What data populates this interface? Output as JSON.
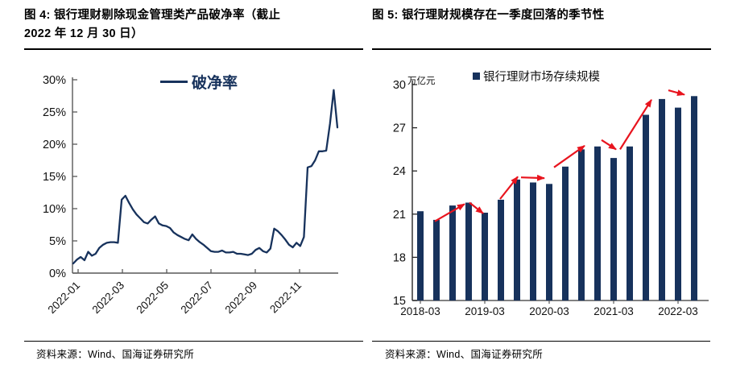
{
  "figure4": {
    "title_lines": [
      "图 4: 银行理财剔除现金管理类产品破净率（截止",
      "2022 年 12 月 30 日）"
    ],
    "legend": "破净率",
    "source": "资料来源：Wind、国海证券研究所"
  },
  "figure5": {
    "title": "图 5: 银行理财规模存在一季度回落的季节性",
    "unit_label": "万亿元",
    "legend": "银行理财市场存续规模",
    "source": "资料来源：Wind、国海证券研究所"
  },
  "colors": {
    "navy": "#17325c",
    "red": "#e8141e",
    "axis": "#595959",
    "label": "#111111"
  },
  "chart_data": [
    {
      "type": "line",
      "title": "银行理财剔除现金管理类产品破净率",
      "series_name": "破净率",
      "unit": "%",
      "frequency": "weekly",
      "x_start": "2022-01",
      "x_end": "2022-12-30",
      "x_ticks": [
        "2022-01",
        "2022-03",
        "2022-05",
        "2022-07",
        "2022-09",
        "2022-11"
      ],
      "y_ticks": [
        "0%",
        "5%",
        "10%",
        "15%",
        "20%",
        "25%",
        "30%"
      ],
      "ylim": [
        0,
        30
      ],
      "grid": false,
      "legend_position": "top-center",
      "values": [
        1.5,
        2.1,
        2.5,
        2.0,
        3.3,
        2.7,
        3.0,
        3.9,
        4.4,
        4.7,
        4.8,
        4.8,
        4.7,
        11.4,
        12.0,
        10.9,
        9.9,
        9.1,
        8.5,
        7.9,
        7.7,
        8.3,
        8.8,
        7.7,
        7.4,
        7.3,
        7.0,
        6.3,
        5.9,
        5.6,
        5.3,
        5.1,
        6.0,
        5.3,
        4.8,
        4.4,
        3.9,
        3.4,
        3.3,
        3.3,
        3.5,
        3.2,
        3.2,
        3.3,
        3.0,
        3.0,
        2.9,
        2.8,
        3.0,
        3.6,
        3.9,
        3.4,
        3.2,
        3.8,
        6.9,
        6.5,
        5.9,
        5.2,
        4.4,
        4.0,
        4.7,
        4.2,
        5.6,
        16.4,
        16.6,
        17.5,
        18.9,
        18.9,
        19.0,
        23.2,
        28.4,
        22.6
      ]
    },
    {
      "type": "bar",
      "title": "银行理财市场存续规模",
      "series_name": "银行理财市场存续规模",
      "unit": "万亿元",
      "categories": [
        "2018-03",
        "2018-06",
        "2018-09",
        "2018-12",
        "2019-03",
        "2019-06",
        "2019-09",
        "2019-12",
        "2020-03",
        "2020-06",
        "2020-09",
        "2020-12",
        "2021-03",
        "2021-06",
        "2021-09",
        "2021-12",
        "2022-03",
        "2022-06"
      ],
      "values": [
        21.2,
        20.6,
        21.6,
        21.8,
        21.1,
        22.0,
        23.4,
        23.2,
        23.1,
        24.3,
        25.5,
        25.7,
        24.9,
        25.7,
        27.9,
        29.0,
        28.4,
        29.2
      ],
      "x_tick_labels": [
        "2018-03",
        "2019-03",
        "2020-03",
        "2021-03",
        "2022-03"
      ],
      "y_ticks": [
        15,
        18,
        21,
        24,
        27,
        30
      ],
      "ylim": [
        15,
        30
      ],
      "grid": false,
      "legend_position": "top-center",
      "annotations": {
        "note": "red arrows highlighting Q1 seasonal pullbacks",
        "arrows": [
          {
            "from": [
              0.9,
              20.5
            ],
            "to": [
              2.75,
              21.7
            ]
          },
          {
            "from": [
              3.05,
              21.8
            ],
            "to": [
              3.9,
              21.05
            ]
          },
          {
            "from": [
              4.95,
              22.05
            ],
            "to": [
              6.05,
              23.6
            ]
          },
          {
            "from": [
              6.25,
              23.55
            ],
            "to": [
              7.7,
              23.5
            ]
          },
          {
            "from": [
              8.3,
              24.25
            ],
            "to": [
              10.2,
              25.75
            ]
          },
          {
            "from": [
              11.25,
              26.15
            ],
            "to": [
              12.15,
              25.5
            ]
          },
          {
            "from": [
              12.4,
              25.5
            ],
            "to": [
              14.35,
              28.95
            ]
          },
          {
            "from": [
              15.4,
              29.6
            ],
            "to": [
              16.4,
              29.3
            ]
          }
        ]
      }
    }
  ]
}
